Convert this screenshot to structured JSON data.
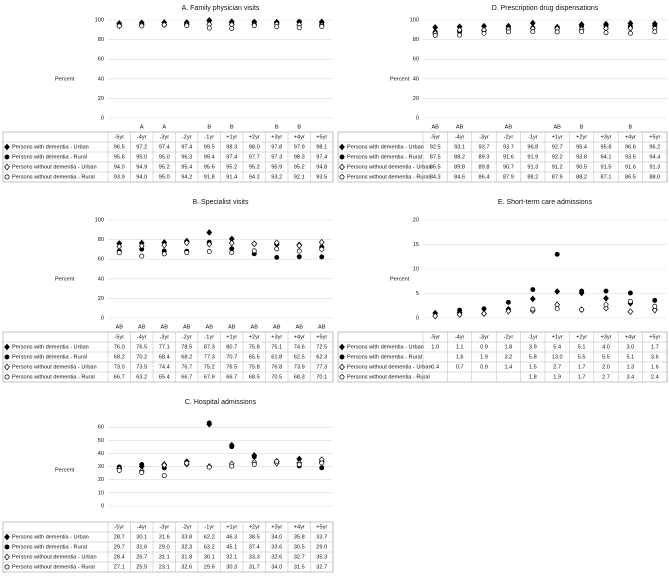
{
  "chart_data": [
    {
      "type": "scatter",
      "title": "A. Family physician visits",
      "y_label": "Percent",
      "categories": [
        "-5yr",
        "-4yr",
        "-3yr",
        "-2yr",
        "-1yr",
        "+1yr",
        "+2yr",
        "+3yr",
        "+4yr",
        "+5yr"
      ],
      "annotations": [
        null,
        "A",
        "A",
        null,
        "B",
        "B",
        null,
        "B",
        "B",
        null
      ],
      "ylim": [
        0,
        100
      ],
      "yticks": [
        0,
        20,
        40,
        60,
        80,
        100
      ],
      "grid": true,
      "series": [
        {
          "name": "Persons with dementia - Urban",
          "color": "#000000",
          "marker": "diamond",
          "filled": true,
          "values": [
            96.5,
            97.2,
            97.4,
            97.4,
            99.5,
            98.3,
            98.0,
            97.8,
            97.9,
            98.1
          ],
          "value_labels": [
            "96.5",
            "97.2",
            "97.4",
            "97.4",
            "99.5",
            "98.3",
            "98.0",
            "97.8",
            "97.9",
            "98.1"
          ]
        },
        {
          "name": "Persons with dementia - Rural",
          "color": "#000000",
          "marker": "circle",
          "filled": true,
          "values": [
            95.6,
            95.0,
            95.0,
            96.3,
            99.4,
            97.4,
            97.7,
            97.3,
            98.3,
            97.4
          ],
          "value_labels": [
            "95.6",
            "95.0",
            "95.0",
            "96.3",
            "99.4",
            "97.4",
            "97.7",
            "97.3",
            "98.3",
            "97.4"
          ]
        },
        {
          "name": "Persons without dementia - Urban",
          "color": "#000000",
          "marker": "diamond",
          "filled": false,
          "values": [
            94.0,
            94.9,
            95.2,
            95.4,
            95.6,
            95.2,
            95.2,
            95.9,
            95.2,
            94.8
          ],
          "value_labels": [
            "94.0",
            "94.9",
            "95.2",
            "95.4",
            "95.6",
            "95.2",
            "95.2",
            "95.9",
            "95.2",
            "94.8"
          ]
        },
        {
          "name": "Persons without dementia - Rural",
          "color": "#000000",
          "marker": "circle",
          "filled": false,
          "values": [
            93.9,
            94.0,
            95.0,
            94.2,
            91.8,
            91.4,
            94.2,
            93.2,
            92.1,
            93.5
          ],
          "value_labels": [
            "93.9",
            "94.0",
            "95.0",
            "94.2",
            "91.8",
            "91.4",
            "94.2",
            "93.2",
            "92.1",
            "93.5"
          ]
        }
      ]
    },
    {
      "type": "scatter",
      "title": "B. Specialist visits",
      "y_label": "Percent",
      "categories": [
        "-5yr",
        "-4yr",
        "-3yr",
        "-2yr",
        "-1yr",
        "+1yr",
        "+2yr",
        "+3yr",
        "+4yr",
        "+5yr"
      ],
      "annotations": [
        "AB",
        "AB",
        "AB",
        "AB",
        "AB",
        "AB",
        "AB",
        "AB",
        "AB",
        "AB"
      ],
      "ylim": [
        0,
        100
      ],
      "yticks": [
        0,
        20,
        40,
        60,
        80,
        100
      ],
      "grid": true,
      "series": [
        {
          "name": "Persons with dementia - Urban",
          "color": "#000000",
          "marker": "diamond",
          "filled": true,
          "values": [
            76.0,
            76.5,
            77.1,
            78.5,
            87.3,
            80.7,
            75.8,
            75.1,
            74.6,
            72.5
          ],
          "value_labels": [
            "76.0",
            "76.5",
            "77.1",
            "78.5",
            "87.3",
            "80.7",
            "75.8",
            "75.1",
            "74.6",
            "72.5"
          ]
        },
        {
          "name": "Persons with dementia - Rural",
          "color": "#000000",
          "marker": "circle",
          "filled": true,
          "values": [
            68.2,
            70.2,
            68.4,
            68.2,
            77.3,
            70.7,
            65.5,
            61.8,
            62.5,
            62.3
          ],
          "value_labels": [
            "68.2",
            "70.2",
            "68.4",
            "68.2",
            "77.3",
            "70.7",
            "65.5",
            "61.8",
            "62.5",
            "62.3"
          ]
        },
        {
          "name": "Persons without dementia - Urban",
          "color": "#000000",
          "marker": "diamond",
          "filled": false,
          "values": [
            73.0,
            73.5,
            74.4,
            76.7,
            75.2,
            76.5,
            75.8,
            76.8,
            73.9,
            77.3
          ],
          "value_labels": [
            "73.0",
            "73.5",
            "74.4",
            "76.7",
            "75.2",
            "76.5",
            "75.8",
            "76.8",
            "73.9",
            "77.3"
          ]
        },
        {
          "name": "Persons without dementia - Rural",
          "color": "#000000",
          "marker": "circle",
          "filled": false,
          "values": [
            66.7,
            63.2,
            65.4,
            66.7,
            67.9,
            66.7,
            68.5,
            70.5,
            68.3,
            70.1
          ],
          "value_labels": [
            "66.7",
            "63.2",
            "65.4",
            "66.7",
            "67.9",
            "66.7",
            "68.5",
            "70.5",
            "68.3",
            "70.1"
          ]
        }
      ]
    },
    {
      "type": "scatter",
      "title": "C. Hospital admissions",
      "y_label": "Percent",
      "categories": [
        "-5yr",
        "-4yr",
        "-3yr",
        "-2yr",
        "-1yr",
        "+1yr",
        "+2yr",
        "+3yr",
        "+4yr",
        "+5yr"
      ],
      "ylim": [
        0,
        70
      ],
      "yticks": [
        0,
        10,
        20,
        30,
        40,
        50,
        60
      ],
      "grid": true,
      "series": [
        {
          "name": "Persons with dementia - Urban",
          "color": "#000000",
          "marker": "diamond",
          "filled": true,
          "values": [
            28.7,
            30.1,
            31.6,
            33.8,
            62.2,
            46.3,
            38.5,
            34.0,
            35.8,
            33.7
          ],
          "value_labels": [
            "28.7",
            "30.1",
            "31.6",
            "33.8",
            "62.2",
            "46.3",
            "38.5",
            "34.0",
            "35.8",
            "33.7"
          ]
        },
        {
          "name": "Persons with dementia - Rural",
          "color": "#000000",
          "marker": "circle",
          "filled": true,
          "values": [
            29.7,
            31.6,
            29.0,
            32.3,
            63.2,
            45.1,
            37.4,
            33.6,
            30.5,
            29.0
          ],
          "value_labels": [
            "29.7",
            "31.6",
            "29.0",
            "32.3",
            "63.2",
            "45.1",
            "37.4",
            "33.6",
            "30.5",
            "29.0"
          ]
        },
        {
          "name": "Persons without dementia - Urban",
          "color": "#000000",
          "marker": "diamond",
          "filled": false,
          "values": [
            28.4,
            26.7,
            31.1,
            31.8,
            30.1,
            32.1,
            33.3,
            32.6,
            32.7,
            35.3
          ],
          "value_labels": [
            "28.4",
            "26.7",
            "31.1",
            "31.8",
            "30.1",
            "32.1",
            "33.3",
            "32.6",
            "32.7",
            "35.3"
          ]
        },
        {
          "name": "Persons without dementia - Rural",
          "color": "#000000",
          "marker": "circle",
          "filled": false,
          "values": [
            27.1,
            25.5,
            23.1,
            32.6,
            29.6,
            30.3,
            31.7,
            34.0,
            31.5,
            32.7
          ],
          "value_labels": [
            "27.1",
            "25.5",
            "23.1",
            "32.6",
            "29.6",
            "30.3",
            "31.7",
            "34.0",
            "31.5",
            "32.7"
          ]
        }
      ]
    },
    {
      "type": "scatter",
      "title": "D. Prescription drug dispensations",
      "y_label": "Percent",
      "categories": [
        "-5yr",
        "-4yr",
        "-3yr",
        "-2yr",
        "-1yr",
        "+1yr",
        "+2yr",
        "+3yr",
        "+4yr",
        "+5yr"
      ],
      "annotations": [
        "AB",
        "AB",
        null,
        "AB",
        null,
        "AB",
        "B",
        null,
        "B",
        null
      ],
      "ylim": [
        0,
        100
      ],
      "yticks": [
        0,
        20,
        40,
        60,
        80,
        100
      ],
      "grid": true,
      "series": [
        {
          "name": "Persons with dementia - Urban",
          "color": "#000000",
          "marker": "diamond",
          "filled": true,
          "values": [
            92.5,
            93.1,
            93.7,
            93.7,
            96.8,
            92.7,
            95.4,
            95.8,
            96.6,
            96.2
          ],
          "value_labels": [
            "92.5",
            "93.1",
            "93.7",
            "93.7",
            "96.8",
            "92.7",
            "95.4",
            "95.8",
            "96.6",
            "96.2"
          ]
        },
        {
          "name": "Persons with dementia - Rural",
          "color": "#000000",
          "marker": "circle",
          "filled": true,
          "values": [
            87.5,
            88.2,
            89.3,
            91.6,
            91.9,
            92.2,
            93.8,
            94.1,
            93.5,
            94.4
          ],
          "value_labels": [
            "87.5",
            "88.2",
            "89.3",
            "91.6",
            "91.9",
            "92.2",
            "93.8",
            "94.1",
            "93.5",
            "94.4"
          ]
        },
        {
          "name": "Persons without dementia - Urban",
          "color": "#000000",
          "marker": "diamond",
          "filled": false,
          "values": [
            86.5,
            89.8,
            89.8,
            90.7,
            91.3,
            91.2,
            90.5,
            91.5,
            91.6,
            91.3
          ],
          "value_labels": [
            "86.5",
            "89.8",
            "89.8",
            "90.7",
            "91.3",
            "91.2",
            "90.5",
            "91.5",
            "91.6",
            "91.3"
          ]
        },
        {
          "name": "Persons without dementia - Rural",
          "color": "#000000",
          "marker": "circle",
          "filled": false,
          "values": [
            84.3,
            84.6,
            86.4,
            87.9,
            88.2,
            87.9,
            88.2,
            87.1,
            86.5,
            88.0
          ],
          "value_labels": [
            "84.3",
            "84.6",
            "86.4",
            "87.9",
            "88.2",
            "87.9",
            "88.2",
            "87.1",
            "86.5",
            "88.0"
          ]
        }
      ]
    },
    {
      "type": "scatter",
      "title": "E. Short-term care admissions",
      "y_label": "Percent",
      "categories": [
        "-5yr",
        "-4yr",
        "-3yr",
        "-2yr",
        "-1yr",
        "+1yr",
        "+2yr",
        "+3yr",
        "+4yr",
        "+5yr"
      ],
      "ylim": [
        0,
        20
      ],
      "yticks": [
        0,
        5,
        10,
        15,
        20
      ],
      "grid": true,
      "series": [
        {
          "name": "Persons with dementia - Urban",
          "color": "#000000",
          "marker": "diamond",
          "filled": true,
          "values": [
            1.0,
            1.1,
            0.9,
            1.8,
            3.9,
            5.4,
            5.1,
            4.0,
            3.0,
            1.7
          ],
          "value_labels": [
            "1.0",
            "1.1",
            "0.9",
            "1.8",
            "3.9",
            "5.4",
            "5.1",
            "4.0",
            "3.0",
            "1.7"
          ]
        },
        {
          "name": "Persons with dementia - Rural",
          "color": "#000000",
          "marker": "circle",
          "filled": true,
          "values": [
            null,
            1.6,
            1.9,
            3.2,
            5.8,
            13.0,
            5.5,
            5.5,
            5.1,
            3.6
          ],
          "value_labels": [
            null,
            "1.6",
            "1.9",
            "3.2",
            "5.8",
            "13.0",
            "5.5",
            "5.5",
            "5.1",
            "3.6"
          ]
        },
        {
          "name": "Persons without dementia - Urban",
          "color": "#000000",
          "marker": "diamond",
          "filled": false,
          "values": [
            0.4,
            0.7,
            0.9,
            1.4,
            1.5,
            2.7,
            1.7,
            2.0,
            1.3,
            1.6
          ],
          "value_labels": [
            "0.4",
            "0.7",
            "0.9",
            "1.4",
            "1.5",
            "2.7",
            "1.7",
            "2.0",
            "1.3",
            "1.6"
          ]
        },
        {
          "name": "Persons without dementia - Rural",
          "color": "#000000",
          "marker": "circle",
          "filled": false,
          "values": [
            null,
            null,
            null,
            null,
            1.8,
            1.9,
            1.7,
            2.7,
            3.4,
            2.4
          ],
          "value_labels": [
            null,
            null,
            null,
            null,
            "1.8",
            "1.9",
            "1.7",
            "2.7",
            "3.4",
            "2.4"
          ]
        }
      ]
    }
  ]
}
